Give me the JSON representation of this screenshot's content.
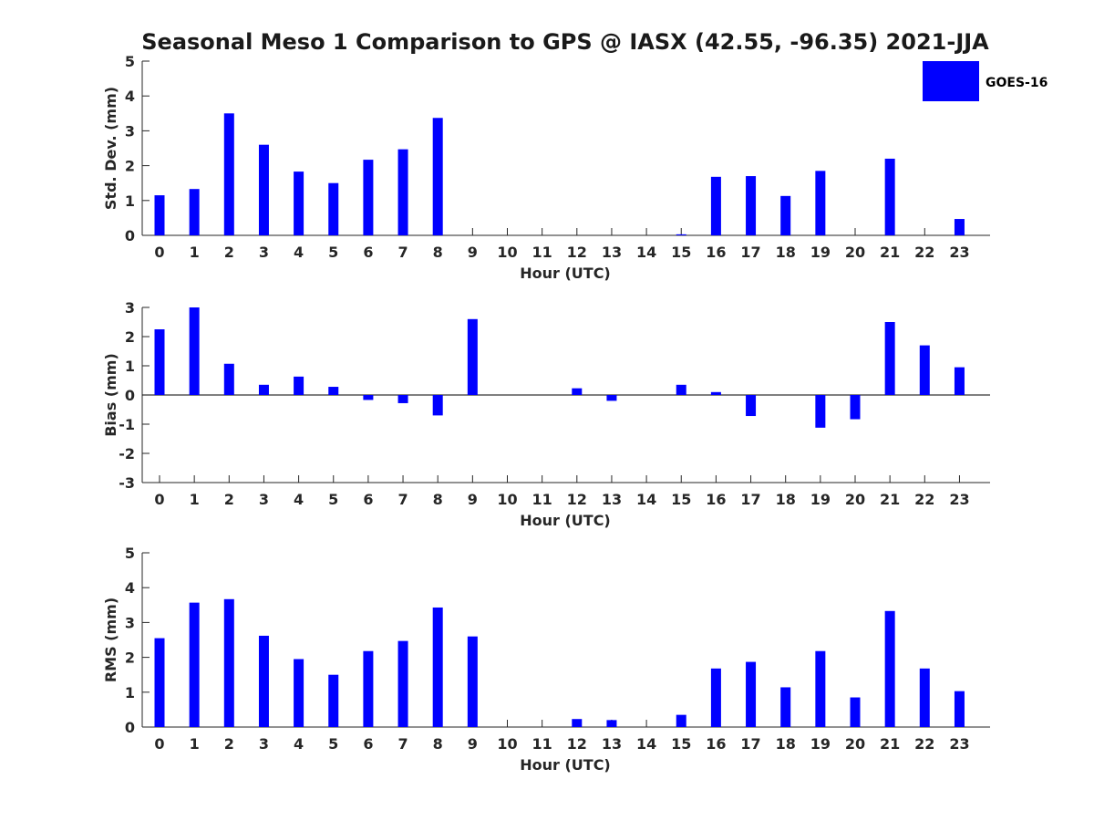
{
  "title": "Seasonal Meso 1 Comparison to GPS @ IASX (42.55, -96.35) 2021-JJA",
  "colors": {
    "bar": "#0000ff",
    "axis": "#262626"
  },
  "legend": {
    "label": "GOES-16",
    "position": "top-right"
  },
  "chart_data": [
    {
      "type": "bar",
      "name": "std-dev",
      "ylabel": "Std. Dev. (mm)",
      "xlabel": "Hour (UTC)",
      "categories": [
        "0",
        "1",
        "2",
        "3",
        "4",
        "5",
        "6",
        "7",
        "8",
        "9",
        "10",
        "11",
        "12",
        "13",
        "14",
        "15",
        "16",
        "17",
        "18",
        "19",
        "20",
        "21",
        "22",
        "23"
      ],
      "ylim": [
        0,
        5
      ],
      "yticks": [
        0,
        1,
        2,
        3,
        4,
        5
      ],
      "series": [
        {
          "name": "GOES-16",
          "values": [
            1.15,
            1.33,
            3.5,
            2.6,
            1.83,
            1.5,
            2.17,
            2.47,
            3.37,
            0,
            0,
            0,
            0,
            0,
            0,
            0.03,
            1.68,
            1.7,
            1.13,
            1.85,
            0,
            2.2,
            0,
            0.47
          ]
        }
      ]
    },
    {
      "type": "bar",
      "name": "bias",
      "ylabel": "Bias (mm)",
      "xlabel": "Hour (UTC)",
      "categories": [
        "0",
        "1",
        "2",
        "3",
        "4",
        "5",
        "6",
        "7",
        "8",
        "9",
        "10",
        "11",
        "12",
        "13",
        "14",
        "15",
        "16",
        "17",
        "18",
        "19",
        "20",
        "21",
        "22",
        "23"
      ],
      "ylim": [
        -3,
        3
      ],
      "yticks": [
        -3,
        -2,
        -1,
        0,
        1,
        2,
        3
      ],
      "zero_line": true,
      "series": [
        {
          "name": "GOES-16",
          "values": [
            2.25,
            3.0,
            1.07,
            0.35,
            0.63,
            0.28,
            -0.17,
            -0.28,
            -0.7,
            2.6,
            0,
            0,
            0.23,
            -0.2,
            0,
            0.35,
            0.1,
            -0.72,
            0,
            -1.12,
            -0.83,
            2.5,
            1.7,
            0.95
          ]
        }
      ]
    },
    {
      "type": "bar",
      "name": "rms",
      "ylabel": "RMS (mm)",
      "xlabel": "Hour (UTC)",
      "categories": [
        "0",
        "1",
        "2",
        "3",
        "4",
        "5",
        "6",
        "7",
        "8",
        "9",
        "10",
        "11",
        "12",
        "13",
        "14",
        "15",
        "16",
        "17",
        "18",
        "19",
        "20",
        "21",
        "22",
        "23"
      ],
      "ylim": [
        0,
        5
      ],
      "yticks": [
        0,
        1,
        2,
        3,
        4,
        5
      ],
      "series": [
        {
          "name": "GOES-16",
          "values": [
            2.55,
            3.57,
            3.67,
            2.62,
            1.95,
            1.5,
            2.18,
            2.47,
            3.43,
            2.6,
            0,
            0,
            0.23,
            0.2,
            0,
            0.35,
            1.68,
            1.87,
            1.14,
            2.18,
            0.85,
            3.33,
            1.68,
            1.03
          ]
        }
      ]
    }
  ]
}
